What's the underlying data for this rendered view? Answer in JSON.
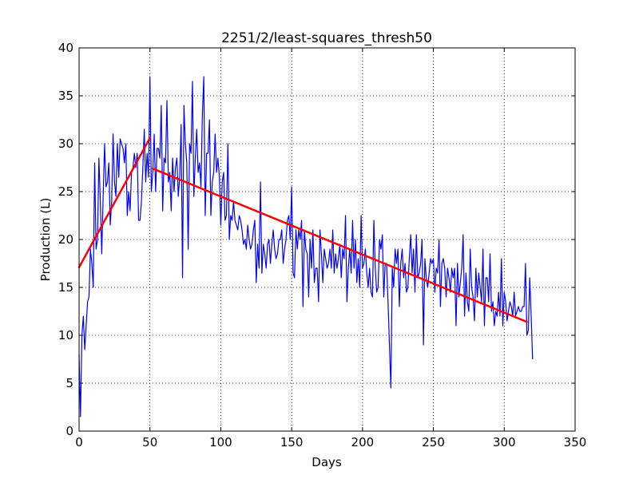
{
  "chart_data": {
    "type": "line",
    "title": "2251/2/least-squares_thresh50",
    "xlabel": "Days",
    "ylabel": "Production (L)",
    "xlim": [
      0,
      350
    ],
    "ylim": [
      0,
      40
    ],
    "x_ticks": [
      0,
      50,
      100,
      150,
      200,
      250,
      300,
      350
    ],
    "y_ticks": [
      0,
      5,
      10,
      15,
      20,
      25,
      30,
      35,
      40
    ],
    "grid": true,
    "grid_style": "dotted",
    "legend": "none",
    "colors": {
      "data": "#0000ff",
      "fit": "#ff0000",
      "axes": "#000000",
      "background": "#ffffff"
    },
    "series": [
      {
        "values": [
          [
            0,
            8
          ],
          [
            1,
            1.5
          ],
          [
            2,
            10
          ],
          [
            3,
            12
          ],
          [
            4,
            8.5
          ],
          [
            5,
            11
          ],
          [
            6,
            13.5
          ],
          [
            7,
            14
          ],
          [
            8,
            19
          ],
          [
            9,
            17.5
          ],
          [
            10,
            15
          ],
          [
            11,
            28
          ],
          [
            12,
            19
          ],
          [
            13,
            20
          ],
          [
            14,
            28.5
          ],
          [
            15,
            24
          ],
          [
            16,
            18.5
          ],
          [
            17,
            24.5
          ],
          [
            18,
            30
          ],
          [
            19,
            25.5
          ],
          [
            20,
            26
          ],
          [
            21,
            28
          ],
          [
            22,
            21.5
          ],
          [
            23,
            24
          ],
          [
            24,
            31
          ],
          [
            25,
            26
          ],
          [
            26,
            24.5
          ],
          [
            27,
            30
          ],
          [
            28,
            26.5
          ],
          [
            29,
            30.5
          ],
          [
            30,
            30
          ],
          [
            31,
            29.5
          ],
          [
            32,
            28
          ],
          [
            33,
            30
          ],
          [
            34,
            22.5
          ],
          [
            35,
            25
          ],
          [
            36,
            23
          ],
          [
            37,
            27
          ],
          [
            38,
            27.5
          ],
          [
            39,
            29
          ],
          [
            40,
            27.5
          ],
          [
            41,
            29
          ],
          [
            42,
            22
          ],
          [
            43,
            22
          ],
          [
            44,
            24
          ],
          [
            45,
            27.5
          ],
          [
            46,
            31.5
          ],
          [
            47,
            26
          ],
          [
            48,
            29
          ],
          [
            49,
            26.5
          ],
          [
            50,
            37
          ],
          [
            51,
            25
          ],
          [
            52,
            27
          ],
          [
            53,
            31
          ],
          [
            54,
            25
          ],
          [
            55,
            29.5
          ],
          [
            56,
            29.5
          ],
          [
            57,
            28.5
          ],
          [
            58,
            34
          ],
          [
            59,
            23
          ],
          [
            60,
            28.5
          ],
          [
            61,
            28
          ],
          [
            62,
            34.5
          ],
          [
            63,
            26
          ],
          [
            64,
            27
          ],
          [
            65,
            23
          ],
          [
            66,
            28.5
          ],
          [
            67,
            25
          ],
          [
            68,
            27.5
          ],
          [
            69,
            28.5
          ],
          [
            70,
            24.5
          ],
          [
            71,
            26.5
          ],
          [
            72,
            32
          ],
          [
            73,
            16
          ],
          [
            74,
            34
          ],
          [
            75,
            30
          ],
          [
            76,
            28
          ],
          [
            77,
            19
          ],
          [
            78,
            30
          ],
          [
            79,
            29
          ],
          [
            80,
            36.5
          ],
          [
            81,
            24.5
          ],
          [
            82,
            28.5
          ],
          [
            83,
            31.5
          ],
          [
            84,
            27
          ],
          [
            85,
            28
          ],
          [
            86,
            25.5
          ],
          [
            87,
            33
          ],
          [
            88,
            37
          ],
          [
            89,
            22.5
          ],
          [
            90,
            29
          ],
          [
            91,
            29
          ],
          [
            92,
            32.5
          ],
          [
            93,
            22.5
          ],
          [
            94,
            26
          ],
          [
            95,
            27
          ],
          [
            96,
            31
          ],
          [
            97,
            27
          ],
          [
            98,
            28.5
          ],
          [
            99,
            26.5
          ],
          [
            100,
            21.5
          ],
          [
            101,
            26
          ],
          [
            102,
            27
          ],
          [
            103,
            22
          ],
          [
            104,
            22.5
          ],
          [
            105,
            30
          ],
          [
            106,
            20
          ],
          [
            107,
            22.5
          ],
          [
            108,
            22
          ],
          [
            109,
            24
          ],
          [
            110,
            22
          ],
          [
            111,
            21.5
          ],
          [
            112,
            21
          ],
          [
            113,
            22.5
          ],
          [
            114,
            22
          ],
          [
            115,
            21
          ],
          [
            116,
            19.5
          ],
          [
            117,
            20
          ],
          [
            118,
            19
          ],
          [
            119,
            21.5
          ],
          [
            120,
            20
          ],
          [
            121,
            19
          ],
          [
            122,
            19.5
          ],
          [
            123,
            21
          ],
          [
            124,
            22
          ],
          [
            125,
            15.5
          ],
          [
            126,
            19.5
          ],
          [
            127,
            17
          ],
          [
            128,
            26
          ],
          [
            129,
            16.5
          ],
          [
            130,
            19.5
          ],
          [
            131,
            18.5
          ],
          [
            132,
            17
          ],
          [
            133,
            19.5
          ],
          [
            134,
            20
          ],
          [
            135,
            17.5
          ],
          [
            136,
            19.5
          ],
          [
            137,
            21
          ],
          [
            138,
            19
          ],
          [
            139,
            18
          ],
          [
            140,
            18.5
          ],
          [
            141,
            20
          ],
          [
            142,
            20
          ],
          [
            143,
            21
          ],
          [
            144,
            17.5
          ],
          [
            145,
            19
          ],
          [
            146,
            20
          ],
          [
            147,
            22
          ],
          [
            148,
            22.5
          ],
          [
            149,
            20
          ],
          [
            150,
            25.5
          ],
          [
            151,
            16.5
          ],
          [
            152,
            16
          ],
          [
            153,
            21
          ],
          [
            154,
            19
          ],
          [
            155,
            21
          ],
          [
            156,
            20
          ],
          [
            157,
            22
          ],
          [
            158,
            13
          ],
          [
            159,
            21
          ],
          [
            160,
            19
          ],
          [
            161,
            18.5
          ],
          [
            162,
            14
          ],
          [
            163,
            20
          ],
          [
            164,
            17
          ],
          [
            165,
            21
          ],
          [
            166,
            15.5
          ],
          [
            167,
            17
          ],
          [
            168,
            17
          ],
          [
            169,
            13.5
          ],
          [
            170,
            21
          ],
          [
            171,
            18.5
          ],
          [
            172,
            15.5
          ],
          [
            173,
            19
          ],
          [
            174,
            18
          ],
          [
            175,
            17
          ],
          [
            176,
            17.5
          ],
          [
            177,
            19
          ],
          [
            178,
            17
          ],
          [
            179,
            21
          ],
          [
            180,
            16.5
          ],
          [
            181,
            18.5
          ],
          [
            182,
            17
          ],
          [
            183,
            18
          ],
          [
            184,
            19.5
          ],
          [
            185,
            16
          ],
          [
            186,
            19
          ],
          [
            187,
            18
          ],
          [
            188,
            22.5
          ],
          [
            189,
            13.5
          ],
          [
            190,
            17
          ],
          [
            191,
            19
          ],
          [
            192,
            16.5
          ],
          [
            193,
            22
          ],
          [
            194,
            17
          ],
          [
            195,
            20
          ],
          [
            196,
            15.5
          ],
          [
            197,
            18
          ],
          [
            198,
            15
          ],
          [
            199,
            22.5
          ],
          [
            200,
            17
          ],
          [
            201,
            17.5
          ],
          [
            202,
            19
          ],
          [
            203,
            16.5
          ],
          [
            204,
            15
          ],
          [
            205,
            17
          ],
          [
            206,
            14.5
          ],
          [
            207,
            14
          ],
          [
            208,
            22
          ],
          [
            209,
            17
          ],
          [
            210,
            14.5
          ],
          [
            211,
            15
          ],
          [
            212,
            20
          ],
          [
            213,
            19
          ],
          [
            214,
            20.5
          ],
          [
            215,
            14
          ],
          [
            216,
            17.5
          ],
          [
            217,
            17.5
          ],
          [
            218,
            13.5
          ],
          [
            219,
            9
          ],
          [
            220,
            4.5
          ],
          [
            221,
            17
          ],
          [
            222,
            15
          ],
          [
            223,
            19
          ],
          [
            224,
            17.5
          ],
          [
            225,
            19
          ],
          [
            226,
            13
          ],
          [
            227,
            17.5
          ],
          [
            228,
            19
          ],
          [
            229,
            16
          ],
          [
            230,
            17.5
          ],
          [
            231,
            14.5
          ],
          [
            232,
            15
          ],
          [
            233,
            18
          ],
          [
            234,
            20.5
          ],
          [
            235,
            16.5
          ],
          [
            236,
            19
          ],
          [
            237,
            14.5
          ],
          [
            238,
            20.5
          ],
          [
            239,
            16
          ],
          [
            240,
            16.5
          ],
          [
            241,
            17.5
          ],
          [
            242,
            20
          ],
          [
            243,
            9
          ],
          [
            244,
            18
          ],
          [
            245,
            16
          ],
          [
            246,
            15
          ],
          [
            247,
            16.5
          ],
          [
            248,
            18
          ],
          [
            249,
            17.5
          ],
          [
            250,
            18
          ],
          [
            251,
            14.5
          ],
          [
            252,
            17
          ],
          [
            253,
            16.5
          ],
          [
            254,
            20
          ],
          [
            255,
            13
          ],
          [
            256,
            17.5
          ],
          [
            257,
            18
          ],
          [
            258,
            17
          ],
          [
            259,
            14
          ],
          [
            260,
            17
          ],
          [
            261,
            16
          ],
          [
            262,
            14.5
          ],
          [
            263,
            17
          ],
          [
            264,
            16
          ],
          [
            265,
            17
          ],
          [
            266,
            11
          ],
          [
            267,
            17.5
          ],
          [
            268,
            14
          ],
          [
            269,
            15.5
          ],
          [
            270,
            17
          ],
          [
            271,
            20.5
          ],
          [
            272,
            12
          ],
          [
            273,
            16.5
          ],
          [
            274,
            13.5
          ],
          [
            275,
            12.5
          ],
          [
            276,
            19
          ],
          [
            277,
            15
          ],
          [
            278,
            14
          ],
          [
            279,
            11.5
          ],
          [
            280,
            17
          ],
          [
            281,
            14
          ],
          [
            282,
            16.5
          ],
          [
            283,
            15
          ],
          [
            284,
            13.5
          ],
          [
            285,
            19
          ],
          [
            286,
            11
          ],
          [
            287,
            16
          ],
          [
            288,
            16
          ],
          [
            289,
            13.5
          ],
          [
            290,
            18.5
          ],
          [
            291,
            12.5
          ],
          [
            292,
            13.5
          ],
          [
            293,
            11
          ],
          [
            294,
            12.5
          ],
          [
            295,
            12
          ],
          [
            296,
            14.5
          ],
          [
            297,
            12
          ],
          [
            298,
            18
          ],
          [
            299,
            11
          ],
          [
            300,
            14.5
          ],
          [
            301,
            13.5
          ],
          [
            302,
            11.5
          ],
          [
            303,
            12.5
          ],
          [
            304,
            13.5
          ],
          [
            305,
            13
          ],
          [
            306,
            12
          ],
          [
            307,
            14.5
          ],
          [
            308,
            12
          ],
          [
            309,
            12.5
          ],
          [
            310,
            13
          ],
          [
            311,
            12.5
          ],
          [
            312,
            12.5
          ],
          [
            313,
            13
          ],
          [
            314,
            13
          ],
          [
            315,
            17.5
          ],
          [
            316,
            10
          ],
          [
            317,
            10.5
          ],
          [
            318,
            16
          ],
          [
            319,
            12
          ],
          [
            320,
            7.5
          ]
        ]
      },
      {
        "segments": [
          [
            [
              0,
              17.1
            ],
            [
              50,
              30.6
            ]
          ],
          [
            [
              52,
              27.4
            ],
            [
              316,
              11.4
            ]
          ]
        ]
      }
    ]
  }
}
